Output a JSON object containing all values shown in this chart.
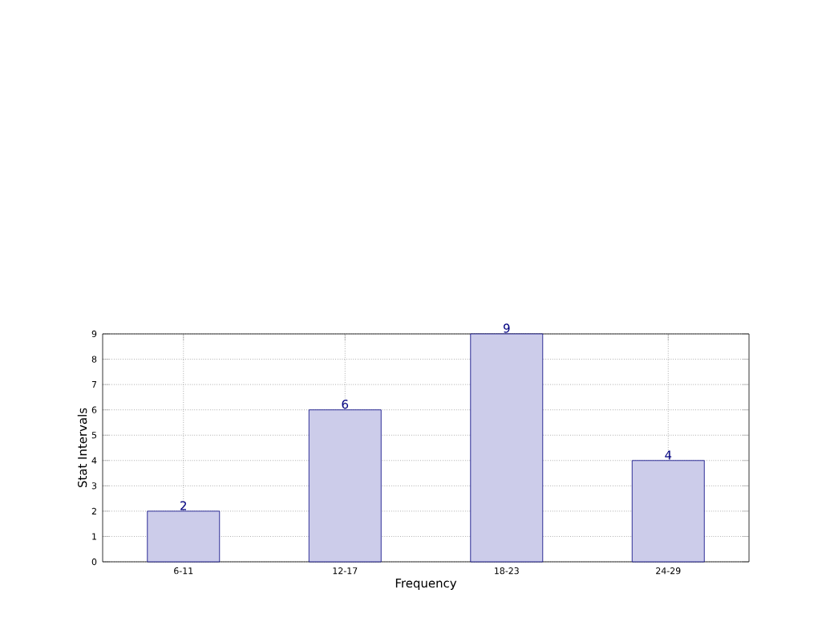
{
  "chart_data": {
    "type": "bar",
    "xlabel": "Frequency",
    "ylabel": "Stat Intervals",
    "categories": [
      "6-11",
      "12-17",
      "18-23",
      "24-29"
    ],
    "values": [
      2,
      6,
      9,
      4
    ],
    "color": "#ccccea",
    "ylim": [
      0,
      9
    ],
    "yticks": [
      0,
      1,
      2,
      3,
      4,
      5,
      6,
      7,
      8,
      9
    ],
    "grid": true,
    "data_labels": true
  }
}
